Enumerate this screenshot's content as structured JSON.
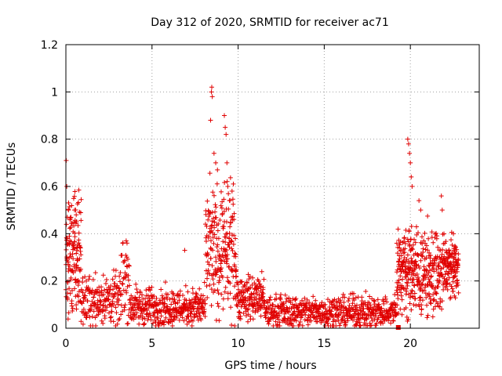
{
  "chart_data": {
    "type": "scatter",
    "title": "Day 312 of 2020, SRMTID for receiver ac71",
    "xlabel": "GPS time / hours",
    "ylabel": "SRMTID / TECUs",
    "xlim": [
      0,
      24
    ],
    "ylim": [
      0,
      1.2
    ],
    "xticks": [
      0,
      5,
      10,
      15,
      20
    ],
    "xtick_labels": [
      "0",
      "5",
      "10",
      "15",
      "20"
    ],
    "yticks": [
      0,
      0.2,
      0.4,
      0.6,
      0.8,
      1.0,
      1.2
    ],
    "ytick_labels": [
      "0",
      "0.2",
      "0.4",
      "0.6",
      "0.8",
      "1",
      "1.2"
    ],
    "grid": true,
    "marker": "+",
    "color": "#e00000",
    "series": [
      {
        "name": "SRMTID",
        "segments": [
          {
            "x0": 0.0,
            "x1": 0.9,
            "n": 140,
            "base": 0.3,
            "spread": 0.2
          },
          {
            "x0": 0.9,
            "x1": 3.2,
            "n": 180,
            "base": 0.12,
            "spread": 0.08
          },
          {
            "x0": 3.2,
            "x1": 3.7,
            "n": 40,
            "base": 0.22,
            "spread": 0.14
          },
          {
            "x0": 3.7,
            "x1": 8.1,
            "n": 360,
            "base": 0.09,
            "spread": 0.06
          },
          {
            "x0": 8.1,
            "x1": 9.9,
            "n": 220,
            "base": 0.32,
            "spread": 0.2
          },
          {
            "x0": 9.9,
            "x1": 11.5,
            "n": 150,
            "base": 0.13,
            "spread": 0.07
          },
          {
            "x0": 11.5,
            "x1": 19.2,
            "n": 600,
            "base": 0.07,
            "spread": 0.05
          },
          {
            "x0": 19.2,
            "x1": 20.3,
            "n": 160,
            "base": 0.25,
            "spread": 0.14
          },
          {
            "x0": 20.3,
            "x1": 22.0,
            "n": 200,
            "base": 0.23,
            "spread": 0.14
          },
          {
            "x0": 22.0,
            "x1": 22.8,
            "n": 110,
            "base": 0.26,
            "spread": 0.09
          }
        ],
        "outliers": [
          [
            0.02,
            0.71
          ],
          [
            0.05,
            0.6
          ],
          [
            0.08,
            0.47
          ],
          [
            0.15,
            0.5
          ],
          [
            0.5,
            0.5
          ],
          [
            0.6,
            0.48
          ],
          [
            3.5,
            0.37
          ],
          [
            3.55,
            0.36
          ],
          [
            6.9,
            0.33
          ],
          [
            8.4,
            0.88
          ],
          [
            8.45,
            1.0
          ],
          [
            8.47,
            1.02
          ],
          [
            8.5,
            0.98
          ],
          [
            8.6,
            0.74
          ],
          [
            8.7,
            0.7
          ],
          [
            8.8,
            0.67
          ],
          [
            9.2,
            0.9
          ],
          [
            9.25,
            0.85
          ],
          [
            9.3,
            0.82
          ],
          [
            9.35,
            0.7
          ],
          [
            9.4,
            0.6
          ],
          [
            9.5,
            0.54
          ],
          [
            9.6,
            0.47
          ],
          [
            19.85,
            0.8
          ],
          [
            19.9,
            0.78
          ],
          [
            19.95,
            0.74
          ],
          [
            20.0,
            0.7
          ],
          [
            20.05,
            0.64
          ],
          [
            20.1,
            0.6
          ],
          [
            20.5,
            0.54
          ],
          [
            20.6,
            0.5
          ],
          [
            21.8,
            0.56
          ],
          [
            21.85,
            0.5
          ],
          [
            22.5,
            0.4
          ]
        ],
        "square_marker": [
          19.3,
          0.0
        ]
      }
    ]
  }
}
